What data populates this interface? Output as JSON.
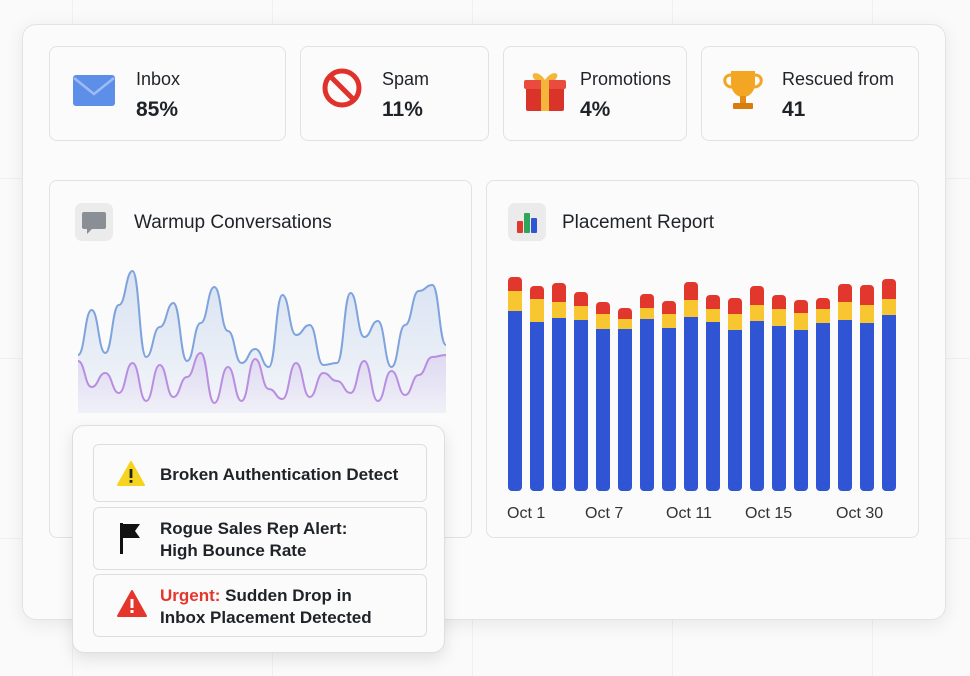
{
  "stats": [
    {
      "label": "Inbox",
      "value": "85%",
      "icon": "envelope-icon"
    },
    {
      "label": "Spam",
      "value": "11%",
      "icon": "prohibited-icon"
    },
    {
      "label": "Promotions",
      "value": "4%",
      "icon": "gift-icon"
    },
    {
      "label": "Rescued from",
      "value": "41",
      "icon": "trophy-icon"
    }
  ],
  "warmup": {
    "title": "Warmup Conversations",
    "icon": "chat-bubble-icon",
    "colors": {
      "primary": "#7fa3dc",
      "secondary": "#b98ee0"
    }
  },
  "alerts": [
    {
      "icon": "warning-icon",
      "line1": "Broken Authentication Detect",
      "line2": ""
    },
    {
      "icon": "flag-icon",
      "line1": "Rogue Sales Rep Alert:",
      "line2": "High Bounce Rate"
    },
    {
      "icon": "danger-icon",
      "prefix": "Urgent:",
      "line1": " Sudden Drop in",
      "line2": "Inbox Placement Detected"
    }
  ],
  "placement": {
    "title": "Placement Report",
    "icon": "bar-chart-icon"
  },
  "chart_data": {
    "type": "bar",
    "stacked": true,
    "x_tick_labels": [
      "Oct 1",
      "Oct 7",
      "Oct 11",
      "Oct 15",
      "Oct 30"
    ],
    "series": [
      {
        "values": [
          180,
          169,
          173,
          171,
          162,
          162,
          172,
          163,
          174,
          169,
          161,
          170,
          165,
          161,
          168,
          171,
          168,
          176
        ],
        "color": "#2f55d4"
      },
      {
        "values": [
          20,
          23,
          16,
          14,
          15,
          10,
          11,
          14,
          17,
          13,
          16,
          16,
          17,
          17,
          14,
          18,
          18,
          16
        ],
        "color": "#f8c630"
      },
      {
        "values": [
          14,
          13,
          19,
          14,
          12,
          11,
          14,
          13,
          18,
          14,
          16,
          19,
          14,
          13,
          11,
          18,
          20,
          20
        ],
        "color": "#e2372c"
      }
    ]
  }
}
